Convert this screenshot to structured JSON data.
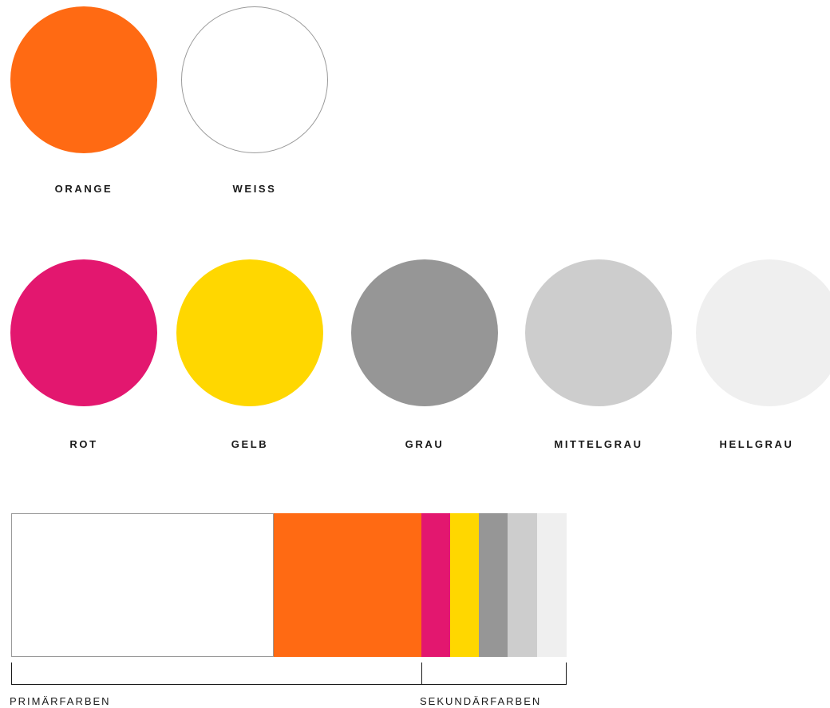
{
  "primary_colors": [
    {
      "name": "ORANGE",
      "color": "#ff6a13"
    },
    {
      "name": "WEISS",
      "color": "#ffffff"
    }
  ],
  "secondary_colors": [
    {
      "name": "ROT",
      "color": "#e3176f"
    },
    {
      "name": "GELB",
      "color": "#ffd700"
    },
    {
      "name": "GRAU",
      "color": "#969696"
    },
    {
      "name": "MITTELGRAU",
      "color": "#cdcdcd"
    },
    {
      "name": "HELLGRAU",
      "color": "#efefef"
    }
  ],
  "proportion_bar": {
    "segments": [
      {
        "name": "WEISS",
        "color": "#ffffff"
      },
      {
        "name": "ORANGE",
        "color": "#ff6a13"
      },
      {
        "name": "ROT",
        "color": "#e3176f"
      },
      {
        "name": "GELB",
        "color": "#ffd700"
      },
      {
        "name": "GRAU",
        "color": "#969696"
      },
      {
        "name": "MITTELGRAU",
        "color": "#cdcdcd"
      },
      {
        "name": "HELLGRAU",
        "color": "#efefef"
      }
    ],
    "primary_label": "PRIMÄRFARBEN",
    "secondary_label": "SEKUNDÄRFARBEN"
  },
  "outline_color": "#9a9a9a"
}
